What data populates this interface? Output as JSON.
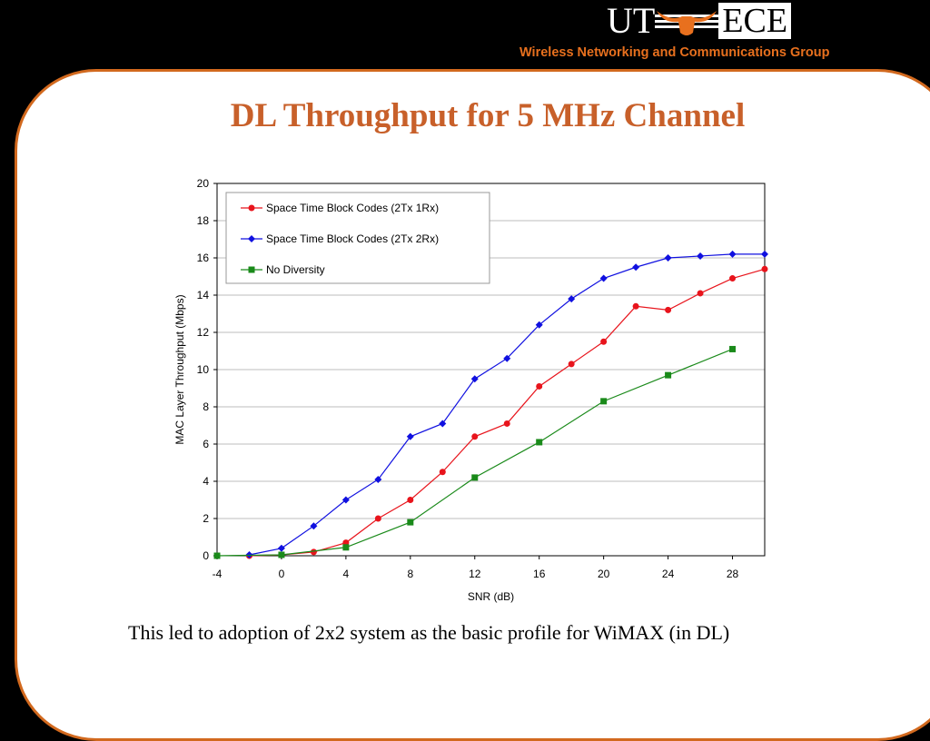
{
  "header": {
    "logo_left": "UT",
    "logo_right": "ECE",
    "group": "Wireless Networking and Communications Group"
  },
  "slide": {
    "title": "DL Throughput  for 5 MHz Channel",
    "caption": "This led to adoption of 2x2 system as the basic profile for WiMAX (in DL)"
  },
  "chart_data": {
    "type": "line",
    "xlabel": "SNR (dB)",
    "ylabel": "MAC Layer Throughput (Mbps)",
    "xlim": [
      -4,
      30
    ],
    "ylim": [
      0,
      20
    ],
    "xticks": [
      -4,
      0,
      4,
      8,
      12,
      16,
      20,
      24,
      28
    ],
    "yticks": [
      0,
      2,
      4,
      6,
      8,
      10,
      12,
      14,
      16,
      18,
      20
    ],
    "grid": true,
    "legend_position": "top-left",
    "series": [
      {
        "name": "Space Time Block Codes (2Tx 1Rx)",
        "color": "#e8141c",
        "marker": "circle",
        "x": [
          -2,
          0,
          2,
          4,
          6,
          8,
          10,
          12,
          14,
          16,
          18,
          20,
          22,
          24,
          26,
          28,
          30
        ],
        "y": [
          0,
          0.05,
          0.2,
          0.7,
          2.0,
          3.0,
          4.5,
          6.4,
          7.1,
          9.1,
          10.3,
          11.5,
          13.4,
          13.2,
          14.1,
          14.9,
          15.4
        ]
      },
      {
        "name": "Space Time Block Codes (2Tx 2Rx)",
        "color": "#1010e0",
        "marker": "diamond",
        "x": [
          -2,
          0,
          2,
          4,
          6,
          8,
          10,
          12,
          14,
          16,
          18,
          20,
          22,
          24,
          26,
          28,
          30
        ],
        "y": [
          0.05,
          0.4,
          1.6,
          3.0,
          4.1,
          6.4,
          7.1,
          9.5,
          10.6,
          12.4,
          13.8,
          14.9,
          15.5,
          16.0,
          16.1,
          16.2,
          16.2
        ]
      },
      {
        "name": "No Diversity",
        "color": "#1a8a1a",
        "marker": "square",
        "x": [
          -4,
          0,
          4,
          8,
          12,
          16,
          20,
          24,
          28
        ],
        "y": [
          0,
          0.05,
          0.45,
          1.8,
          4.2,
          6.1,
          8.3,
          9.7,
          11.1
        ]
      }
    ]
  }
}
